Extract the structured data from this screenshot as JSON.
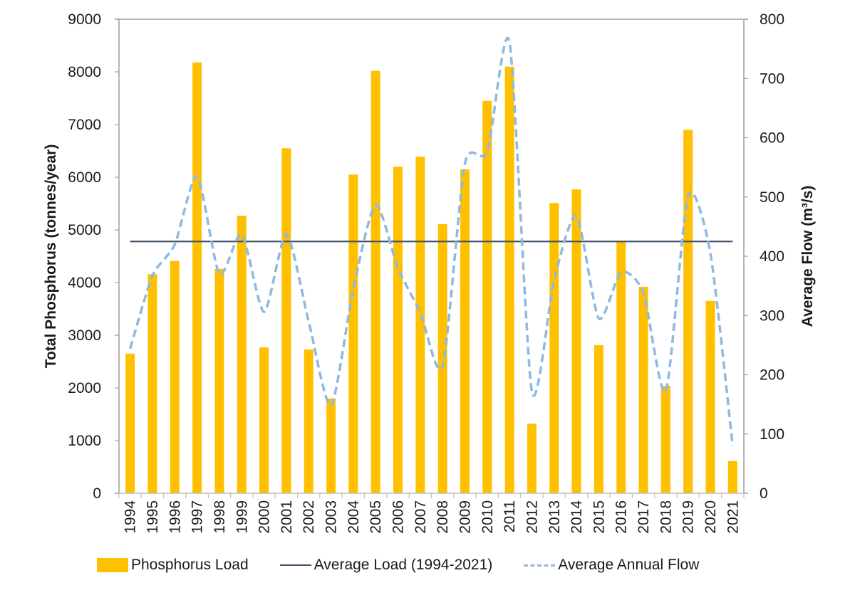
{
  "chart_data": {
    "type": "bar",
    "title": "",
    "xlabel": "",
    "ylabel": "Total Phosphorus (tonnes/year)",
    "y2label": "Average Flow (m³/s)",
    "ylim": [
      0,
      9000
    ],
    "y2lim": [
      0,
      800
    ],
    "yticks": [
      0,
      1000,
      2000,
      3000,
      4000,
      5000,
      6000,
      7000,
      8000,
      9000
    ],
    "y2ticks": [
      0,
      100,
      200,
      300,
      400,
      500,
      600,
      700,
      800
    ],
    "grid": false,
    "legend_position": "bottom",
    "categories": [
      "1994",
      "1995",
      "1996",
      "1997",
      "1998",
      "1999",
      "2000",
      "2001",
      "2002",
      "2003",
      "2004",
      "2005",
      "2006",
      "2007",
      "2008",
      "2009",
      "2010",
      "2011",
      "2012",
      "2013",
      "2014",
      "2015",
      "2016",
      "2017",
      "2018",
      "2019",
      "2020",
      "2021"
    ],
    "series": [
      {
        "name": "Phosphorus Load",
        "type": "bar",
        "axis": "left",
        "color": "#FFC000",
        "values": [
          2650,
          4160,
          4410,
          8180,
          4260,
          5270,
          2770,
          6550,
          2730,
          1800,
          6050,
          8020,
          6200,
          6390,
          5110,
          6150,
          7450,
          8100,
          1320,
          5510,
          5770,
          2810,
          4770,
          3920,
          2040,
          6900,
          3650,
          610
        ]
      },
      {
        "name": "Average Load (1994-2021)",
        "type": "line",
        "axis": "left",
        "color": "#44546A",
        "values": [
          4780,
          4780,
          4780,
          4780,
          4780,
          4780,
          4780,
          4780,
          4780,
          4780,
          4780,
          4780,
          4780,
          4780,
          4780,
          4780,
          4780,
          4780,
          4780,
          4780,
          4780,
          4780,
          4780,
          4780,
          4780,
          4780,
          4780,
          4780
        ]
      },
      {
        "name": "Average Annual Flow",
        "type": "line",
        "style": "dashed",
        "axis": "right",
        "color": "#8DB9E2",
        "values": [
          244,
          367,
          420,
          535,
          370,
          437,
          306,
          437,
          290,
          148,
          345,
          487,
          380,
          305,
          214,
          556,
          576,
          761,
          172,
          360,
          468,
          295,
          373,
          338,
          172,
          502,
          405,
          80
        ]
      }
    ]
  },
  "legend": {
    "items": [
      {
        "label": "Phosphorus Load"
      },
      {
        "label": "Average Load (1994-2021)"
      },
      {
        "label": "Average Annual Flow"
      }
    ]
  }
}
